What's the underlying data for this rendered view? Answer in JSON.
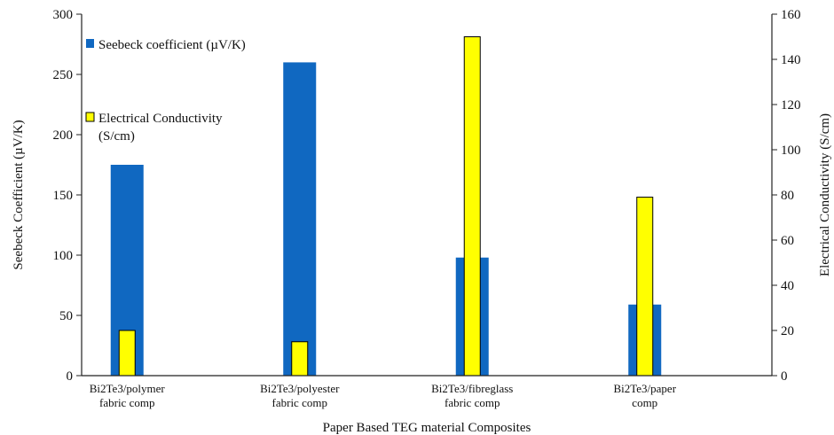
{
  "chart_data": {
    "type": "bar",
    "title": "",
    "xlabel": "Paper Based TEG material Composites",
    "ylabel_left": "Seebeck Coefficient (µV/K)",
    "ylabel_right": "Electrical Conductivity (S/cm)",
    "ylim_left": [
      0,
      300
    ],
    "ylim_right": [
      0,
      160
    ],
    "yticks_left": [
      "0",
      "50",
      "100",
      "150",
      "200",
      "250",
      "300"
    ],
    "yticks_right": [
      "0",
      "20",
      "40",
      "60",
      "80",
      "100",
      "120",
      "140",
      "160"
    ],
    "grid": false,
    "legend_position": "top-left",
    "categories": [
      [
        "Bi2Te3/polymer",
        "fabric comp"
      ],
      [
        "Bi2Te3/polyester",
        "fabric comp"
      ],
      [
        "Bi2Te3/fibreglass",
        "fabric comp"
      ],
      [
        "Bi2Te3/paper",
        "comp"
      ]
    ],
    "series": [
      {
        "name": "Seebeck coefficient (µV/K)",
        "axis": "left",
        "color": "#1068c1",
        "values": [
          175,
          260,
          98,
          59
        ]
      },
      {
        "name": "Electrical Conductivity (S/cm)",
        "name_lines": [
          "Electrical Conductivity",
          "(S/cm)"
        ],
        "axis": "right",
        "color": "#ffff00",
        "stroke": "#000000",
        "values": [
          20,
          15,
          150,
          79
        ]
      }
    ]
  }
}
